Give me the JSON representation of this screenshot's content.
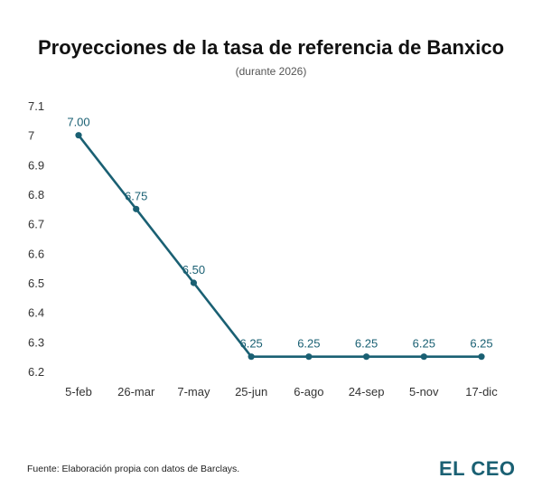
{
  "header": {
    "title": "Proyecciones de la tasa de referencia de Banxico",
    "subtitle": "(durante 2026)"
  },
  "footer": {
    "source": "Fuente: Elaboración propia con datos de Barclays.",
    "logo": "EL CEO"
  },
  "colors": {
    "series": "#1a6073",
    "text": "#333333"
  },
  "chart_data": {
    "type": "line",
    "title": "Proyecciones de la tasa de referencia de Banxico",
    "subtitle": "(durante 2026)",
    "xlabel": "",
    "ylabel": "",
    "categories": [
      "5-feb",
      "26-mar",
      "7-may",
      "25-jun",
      "6-ago",
      "24-sep",
      "5-nov",
      "17-dic"
    ],
    "series": [
      {
        "values": [
          7.0,
          6.75,
          6.5,
          6.25,
          6.25,
          6.25,
          6.25,
          6.25
        ],
        "labels": [
          "7.00",
          "6.75",
          "6.50",
          "6.25",
          "6.25",
          "6.25",
          "6.25",
          "6.25"
        ]
      }
    ],
    "yticks": [
      "6.2",
      "6.3",
      "6.4",
      "6.5",
      "6.6",
      "6.7",
      "6.8",
      "6.9",
      "7",
      "7.1"
    ],
    "ylim": [
      6.2,
      7.1
    ],
    "grid": false,
    "legend": "none"
  }
}
